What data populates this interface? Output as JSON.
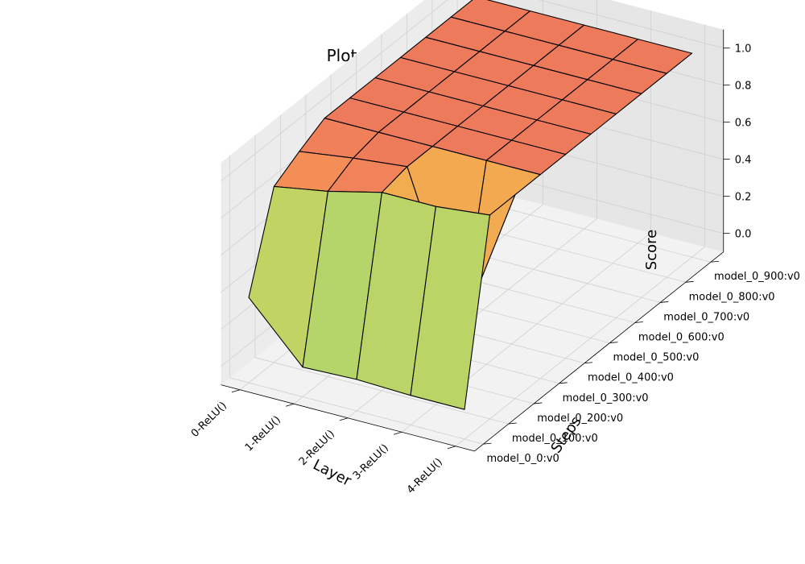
{
  "chart_data": {
    "type": "surface3d",
    "title": "Plot - goal_at_bottom",
    "xlabel": "Layer",
    "ylabel": "Steps",
    "zlabel": "Score",
    "zlim": [
      0,
      1
    ],
    "z_ticks": [
      "0.0",
      "0.2",
      "0.4",
      "0.6",
      "0.8",
      "1.0"
    ],
    "layers": [
      "0-ReLU()",
      "1-ReLU()",
      "2-ReLU()",
      "3-ReLU()",
      "4-ReLU()"
    ],
    "steps": [
      "model_0_0:v0",
      "model_0_100:v0",
      "model_0_200:v0",
      "model_0_300:v0",
      "model_0_400:v0",
      "model_0_500:v0",
      "model_0_600:v0",
      "model_0_700:v0",
      "model_0_800:v0",
      "model_0_900:v0"
    ],
    "z": [
      [
        0.36,
        0.85,
        0.93,
        1.0,
        1.0,
        1.0,
        1.0,
        1.0,
        1.0,
        1.0
      ],
      [
        0.06,
        0.9,
        0.97,
        1.0,
        1.0,
        1.0,
        1.0,
        1.0,
        1.0,
        1.0
      ],
      [
        0.07,
        0.97,
        1.0,
        1.0,
        1.0,
        1.0,
        1.0,
        1.0,
        1.0,
        1.0
      ],
      [
        0.06,
        0.97,
        0.2,
        1.0,
        1.0,
        1.0,
        1.0,
        1.0,
        1.0,
        1.0
      ],
      [
        0.06,
        1.0,
        1.0,
        1.0,
        1.0,
        1.0,
        1.0,
        1.0,
        1.0,
        1.0
      ]
    ],
    "colormap_stops": [
      "#b5d56a",
      "#e4cd50",
      "#f6a050",
      "#ee7a5c"
    ],
    "grid": true
  }
}
